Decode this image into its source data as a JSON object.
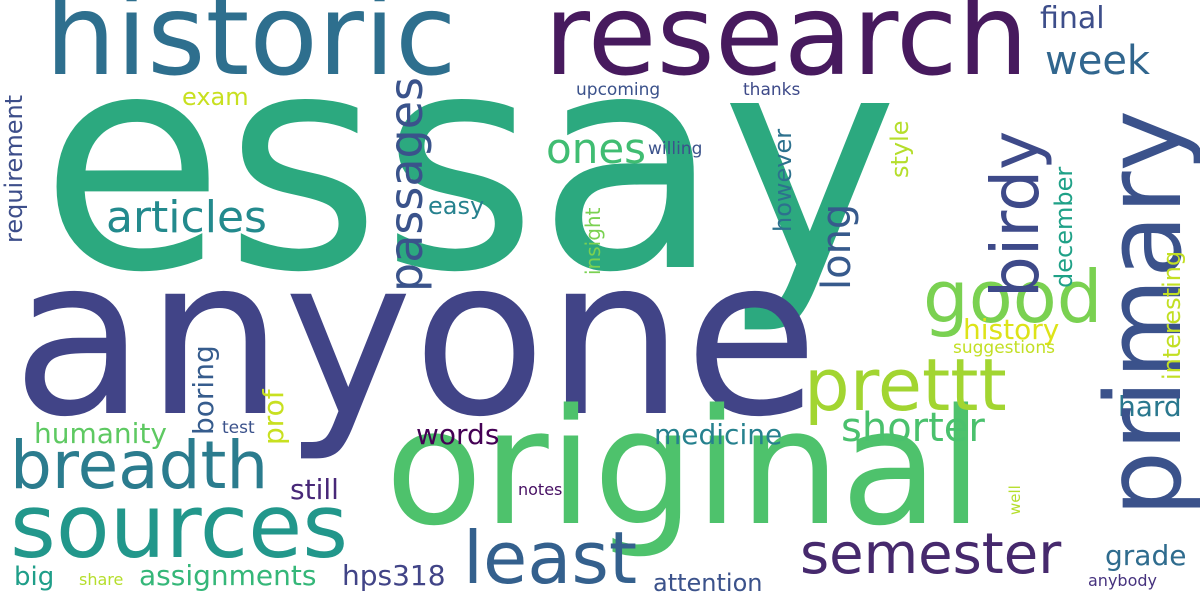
{
  "words": {
    "essay": {
      "text": "essay",
      "color": "#2ca97f"
    },
    "anyone": {
      "text": "anyone",
      "color": "#414487"
    },
    "original": {
      "text": "original",
      "color": "#4ec26c"
    },
    "historic": {
      "text": "historic",
      "color": "#2e6f8e"
    },
    "research": {
      "text": "research",
      "color": "#471a5e"
    },
    "primary": {
      "text": "primary",
      "color": "#3b528b"
    },
    "sources": {
      "text": "sources",
      "color": "#22978b"
    },
    "breadth": {
      "text": "breadth",
      "color": "#2b7c8e"
    },
    "least": {
      "text": "least",
      "color": "#34608d"
    },
    "semester": {
      "text": "semester",
      "color": "#46296d"
    },
    "prettt": {
      "text": "prettt",
      "color": "#a2d531"
    },
    "good": {
      "text": "good",
      "color": "#7ad151"
    },
    "birdy": {
      "text": "birdy",
      "color": "#3e4a89"
    },
    "articles": {
      "text": "articles",
      "color": "#238a8d"
    },
    "passages": {
      "text": "passages",
      "color": "#3a538b"
    },
    "long": {
      "text": "long",
      "color": "#375a8c"
    },
    "ones": {
      "text": "ones",
      "color": "#40bd72"
    },
    "shorter": {
      "text": "shorter",
      "color": "#4ac16d"
    },
    "week": {
      "text": "week",
      "color": "#31668e"
    },
    "final": {
      "text": "final",
      "color": "#3d4e8a"
    },
    "medicine": {
      "text": "medicine",
      "color": "#26818e"
    },
    "words": {
      "text": "words",
      "color": "#440154"
    },
    "humanity": {
      "text": "humanity",
      "color": "#5ec962"
    },
    "assignments": {
      "text": "assignments",
      "color": "#35b779"
    },
    "hps318": {
      "text": "hps318",
      "color": "#414487"
    },
    "still": {
      "text": "still",
      "color": "#482878"
    },
    "boring": {
      "text": "boring",
      "color": "#365c8d"
    },
    "prof": {
      "text": "prof",
      "color": "#c8e020"
    },
    "history": {
      "text": "history",
      "color": "#dde318"
    },
    "hard": {
      "text": "hard",
      "color": "#2a788e"
    },
    "grade": {
      "text": "grade",
      "color": "#2f6c8e"
    },
    "big": {
      "text": "big",
      "color": "#1f9e89"
    },
    "attention": {
      "text": "attention",
      "color": "#3b528b"
    },
    "requirement": {
      "text": "requirement",
      "color": "#3d4e8a"
    },
    "exam": {
      "text": "exam",
      "color": "#c8e020"
    },
    "easy": {
      "text": "easy",
      "color": "#26818e"
    },
    "however": {
      "text": "however",
      "color": "#2d718e"
    },
    "style": {
      "text": "style",
      "color": "#b5de2b"
    },
    "december": {
      "text": "december",
      "color": "#1fa187"
    },
    "interesting": {
      "text": "interesting",
      "color": "#c2df23"
    },
    "insight": {
      "text": "insight",
      "color": "#7ad151"
    },
    "upcoming": {
      "text": "upcoming",
      "color": "#3b528b"
    },
    "thanks": {
      "text": "thanks",
      "color": "#3e4a89"
    },
    "willing": {
      "text": "willing",
      "color": "#3b528b"
    },
    "suggestions": {
      "text": "suggestions",
      "color": "#c2df23"
    },
    "test": {
      "text": "test",
      "color": "#3b528b"
    },
    "notes": {
      "text": "notes",
      "color": "#471063"
    },
    "share": {
      "text": "share",
      "color": "#b5de2b"
    },
    "well": {
      "text": "well",
      "color": "#b5de2b"
    },
    "anybody": {
      "text": "anybody",
      "color": "#46327e"
    }
  }
}
